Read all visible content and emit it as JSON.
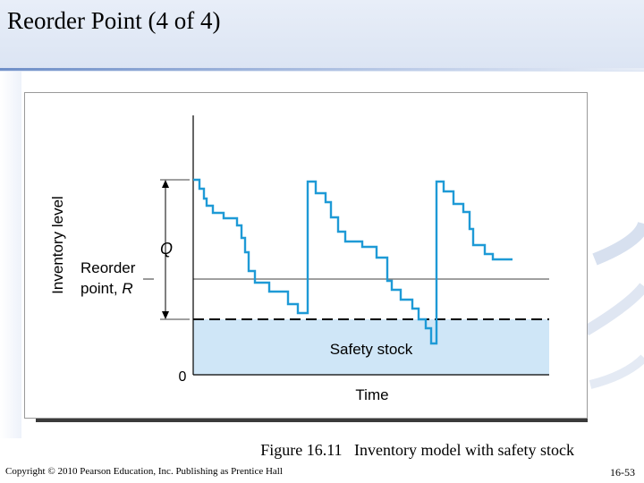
{
  "slide": {
    "title": "Reorder Point (4 of 4)",
    "caption": "Figure 16.11   Inventory model with safety stock",
    "copyright": "Copyright © 2010 Pearson Education, Inc. Publishing as Prentice Hall",
    "page_number": "16-53"
  },
  "diagram": {
    "y_axis_label": "Inventory level",
    "x_axis_label": "Time",
    "q_label": "Q",
    "reorder_label_line1": "Reorder",
    "reorder_label_line2_text": "point,",
    "reorder_label_line2_var": "R",
    "safety_stock_label": "Safety stock",
    "zero_label": "0",
    "colors": {
      "inventory_line": "#1e9ad6",
      "safety_fill": "#cfe6f7",
      "axis": "#000000"
    }
  }
}
